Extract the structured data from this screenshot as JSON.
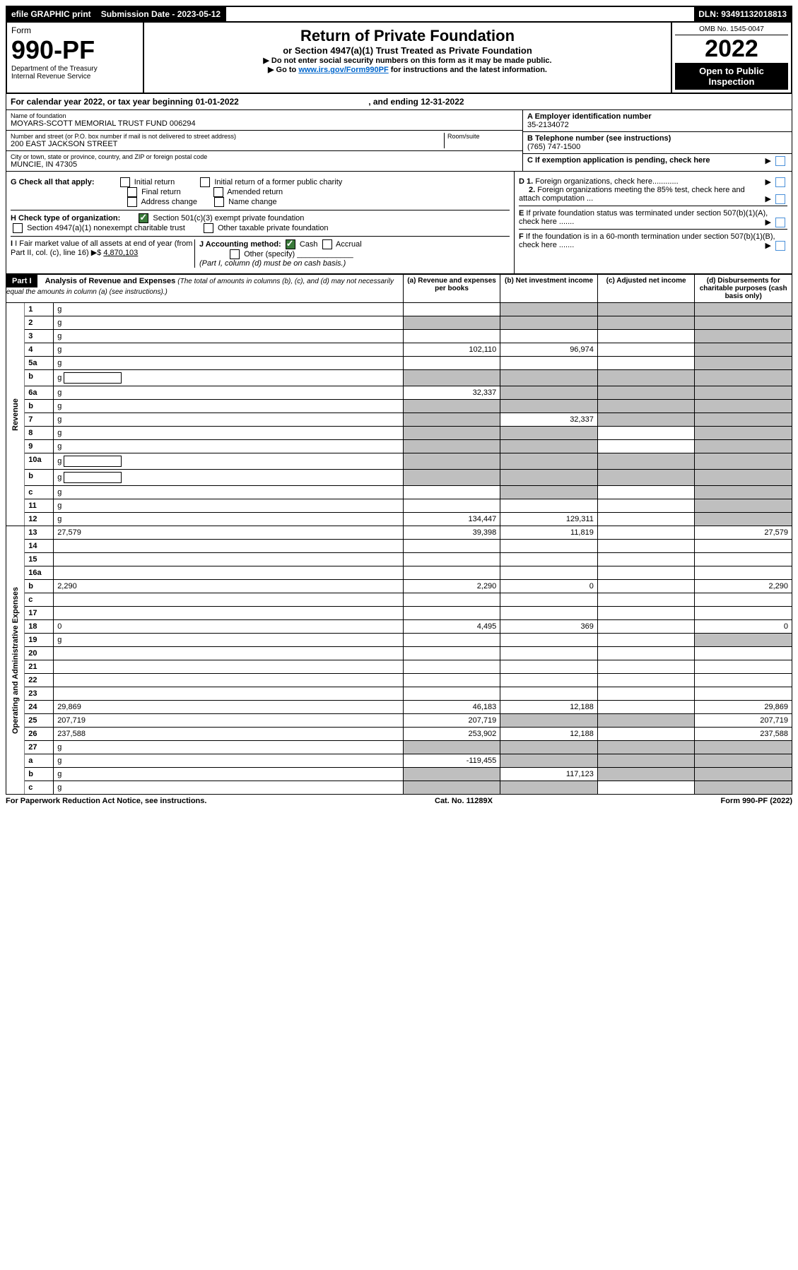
{
  "topbar": {
    "efile": "efile GRAPHIC print",
    "submission_label": "Submission Date - 2023-05-12",
    "dln": "DLN: 93491132018813"
  },
  "header": {
    "form_word": "Form",
    "form_no": "990-PF",
    "dept": "Department of the Treasury",
    "irs": "Internal Revenue Service",
    "title": "Return of Private Foundation",
    "subtitle": "or Section 4947(a)(1) Trust Treated as Private Foundation",
    "instr1": "▶ Do not enter social security numbers on this form as it may be made public.",
    "instr2_pre": "▶ Go to ",
    "instr2_link": "www.irs.gov/Form990PF",
    "instr2_post": " for instructions and the latest information.",
    "omb": "OMB No. 1545-0047",
    "year": "2022",
    "open": "Open to Public Inspection"
  },
  "cal": {
    "text_pre": "For calendar year 2022, or tax year beginning ",
    "begin": "01-01-2022",
    "mid": ", and ending ",
    "end": "12-31-2022"
  },
  "info": {
    "name_label": "Name of foundation",
    "name": "MOYARS-SCOTT MEMORIAL TRUST FUND 006294",
    "addr_label": "Number and street (or P.O. box number if mail is not delivered to street address)",
    "addr": "200 EAST JACKSON STREET",
    "room_label": "Room/suite",
    "city_label": "City or town, state or province, country, and ZIP or foreign postal code",
    "city": "MUNCIE, IN  47305",
    "a_label": "A Employer identification number",
    "a_val": "35-2134072",
    "b_label": "B Telephone number (see instructions)",
    "b_val": "(765) 747-1500",
    "c_label": "C If exemption application is pending, check here"
  },
  "checks": {
    "g_label": "G Check all that apply:",
    "g_opts": [
      "Initial return",
      "Initial return of a former public charity",
      "Final return",
      "Amended return",
      "Address change",
      "Name change"
    ],
    "h_label": "H Check type of organization:",
    "h_opt1": "Section 501(c)(3) exempt private foundation",
    "h_opt2": "Section 4947(a)(1) nonexempt charitable trust",
    "h_opt3": "Other taxable private foundation",
    "i_label": "I Fair market value of all assets at end of year (from Part II, col. (c), line 16)",
    "i_val": "4,870,103",
    "j_label": "J Accounting method:",
    "j_cash": "Cash",
    "j_accrual": "Accrual",
    "j_other": "Other (specify)",
    "j_note": "(Part I, column (d) must be on cash basis.)",
    "d1": "D 1. Foreign organizations, check here............",
    "d2": "2. Foreign organizations meeting the 85% test, check here and attach computation ...",
    "e": "E  If private foundation status was terminated under section 507(b)(1)(A), check here .......",
    "f": "F  If the foundation is in a 60-month termination under section 507(b)(1)(B), check here .......",
    "arrow": "▶"
  },
  "part1": {
    "label": "Part I",
    "title": "Analysis of Revenue and Expenses",
    "note": "(The total of amounts in columns (b), (c), and (d) may not necessarily equal the amounts in column (a) (see instructions).)",
    "col_a": "(a)  Revenue and expenses per books",
    "col_b": "(b)  Net investment income",
    "col_c": "(c)  Adjusted net income",
    "col_d": "(d)  Disbursements for charitable purposes (cash basis only)"
  },
  "sections": {
    "revenue": "Revenue",
    "expenses": "Operating and Administrative Expenses"
  },
  "rows": [
    {
      "n": "1",
      "d": "g",
      "a": "",
      "b": "g",
      "c": "g"
    },
    {
      "n": "2",
      "d": "g",
      "a": "g",
      "b": "g",
      "c": "g"
    },
    {
      "n": "3",
      "d": "g",
      "a": "",
      "b": "",
      "c": ""
    },
    {
      "n": "4",
      "d": "g",
      "a": "102,110",
      "b": "96,974",
      "c": ""
    },
    {
      "n": "5a",
      "d": "g",
      "a": "",
      "b": "",
      "c": ""
    },
    {
      "n": "b",
      "d": "g",
      "a": "g",
      "b": "g",
      "c": "g",
      "box": true
    },
    {
      "n": "6a",
      "d": "g",
      "a": "32,337",
      "b": "g",
      "c": "g"
    },
    {
      "n": "b",
      "d": "g",
      "a": "g",
      "b": "g",
      "c": "g"
    },
    {
      "n": "7",
      "d": "g",
      "a": "g",
      "b": "32,337",
      "c": "g"
    },
    {
      "n": "8",
      "d": "g",
      "a": "g",
      "b": "g",
      "c": ""
    },
    {
      "n": "9",
      "d": "g",
      "a": "g",
      "b": "g",
      "c": ""
    },
    {
      "n": "10a",
      "d": "g",
      "a": "g",
      "b": "g",
      "c": "g",
      "box": true
    },
    {
      "n": "b",
      "d": "g",
      "a": "g",
      "b": "g",
      "c": "g",
      "box": true
    },
    {
      "n": "c",
      "d": "g",
      "a": "",
      "b": "g",
      "c": ""
    },
    {
      "n": "11",
      "d": "g",
      "a": "",
      "b": "",
      "c": ""
    },
    {
      "n": "12",
      "d": "g",
      "a": "134,447",
      "b": "129,311",
      "c": ""
    }
  ],
  "exp_rows": [
    {
      "n": "13",
      "d": "27,579",
      "a": "39,398",
      "b": "11,819",
      "c": ""
    },
    {
      "n": "14",
      "d": "",
      "a": "",
      "b": "",
      "c": ""
    },
    {
      "n": "15",
      "d": "",
      "a": "",
      "b": "",
      "c": ""
    },
    {
      "n": "16a",
      "d": "",
      "a": "",
      "b": "",
      "c": ""
    },
    {
      "n": "b",
      "d": "2,290",
      "a": "2,290",
      "b": "0",
      "c": ""
    },
    {
      "n": "c",
      "d": "",
      "a": "",
      "b": "",
      "c": ""
    },
    {
      "n": "17",
      "d": "",
      "a": "",
      "b": "",
      "c": ""
    },
    {
      "n": "18",
      "d": "0",
      "a": "4,495",
      "b": "369",
      "c": ""
    },
    {
      "n": "19",
      "d": "g",
      "a": "",
      "b": "",
      "c": ""
    },
    {
      "n": "20",
      "d": "",
      "a": "",
      "b": "",
      "c": ""
    },
    {
      "n": "21",
      "d": "",
      "a": "",
      "b": "",
      "c": ""
    },
    {
      "n": "22",
      "d": "",
      "a": "",
      "b": "",
      "c": ""
    },
    {
      "n": "23",
      "d": "",
      "a": "",
      "b": "",
      "c": ""
    },
    {
      "n": "24",
      "d": "29,869",
      "a": "46,183",
      "b": "12,188",
      "c": ""
    },
    {
      "n": "25",
      "d": "207,719",
      "a": "207,719",
      "b": "g",
      "c": "g"
    },
    {
      "n": "26",
      "d": "237,588",
      "a": "253,902",
      "b": "12,188",
      "c": ""
    },
    {
      "n": "27",
      "d": "g",
      "a": "g",
      "b": "g",
      "c": "g"
    },
    {
      "n": "a",
      "d": "g",
      "a": "-119,455",
      "b": "g",
      "c": "g"
    },
    {
      "n": "b",
      "d": "g",
      "a": "g",
      "b": "117,123",
      "c": "g"
    },
    {
      "n": "c",
      "d": "g",
      "a": "g",
      "b": "g",
      "c": ""
    }
  ],
  "footer": {
    "left": "For Paperwork Reduction Act Notice, see instructions.",
    "mid": "Cat. No. 11289X",
    "right": "Form 990-PF (2022)"
  }
}
